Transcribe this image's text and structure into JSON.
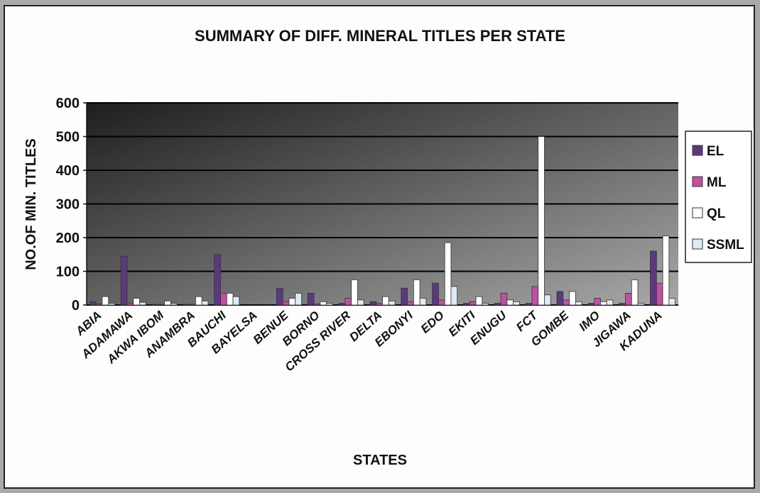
{
  "chart_data": {
    "type": "bar",
    "title": "SUMMARY OF DIFF. MINERAL TITLES PER STATE",
    "x_label": "STATES",
    "y_label": "NO.OF MIN. TITLES",
    "categories": [
      "ABIA",
      "ADAMAWA",
      "AKWA IBOM",
      "ANAMBRA",
      "BAUCHI",
      "BAYELSA",
      "BENUE",
      "BORNO",
      "CROSS RIVER",
      "DELTA",
      "EBONYI",
      "EDO",
      "EKITI",
      "ENUGU",
      "FCT",
      "GOMBE",
      "IMO",
      "JIGAWA",
      "KADUNA"
    ],
    "series": [
      {
        "name": "EL",
        "color": "#5a3a7e",
        "values": [
          10,
          145,
          2,
          2,
          150,
          0,
          50,
          35,
          5,
          10,
          50,
          65,
          5,
          5,
          5,
          40,
          5,
          5,
          160
        ]
      },
      {
        "name": "ML",
        "color": "#c24fa4",
        "values": [
          3,
          5,
          2,
          2,
          35,
          0,
          10,
          3,
          20,
          5,
          10,
          15,
          10,
          35,
          55,
          15,
          20,
          35,
          65
        ]
      },
      {
        "name": "QL",
        "color": "#ffffff",
        "values": [
          25,
          20,
          12,
          25,
          35,
          0,
          20,
          10,
          75,
          25,
          75,
          185,
          25,
          15,
          500,
          40,
          10,
          75,
          205
        ]
      },
      {
        "name": "SSML",
        "color": "#dcecf7",
        "values": [
          5,
          8,
          5,
          12,
          25,
          0,
          35,
          5,
          15,
          12,
          20,
          55,
          5,
          10,
          30,
          10,
          15,
          5,
          20
        ]
      }
    ],
    "ylim": [
      0,
      600
    ],
    "yticks": [
      0,
      100,
      200,
      300,
      400,
      500,
      600
    ],
    "grid": true,
    "legend": "right"
  }
}
